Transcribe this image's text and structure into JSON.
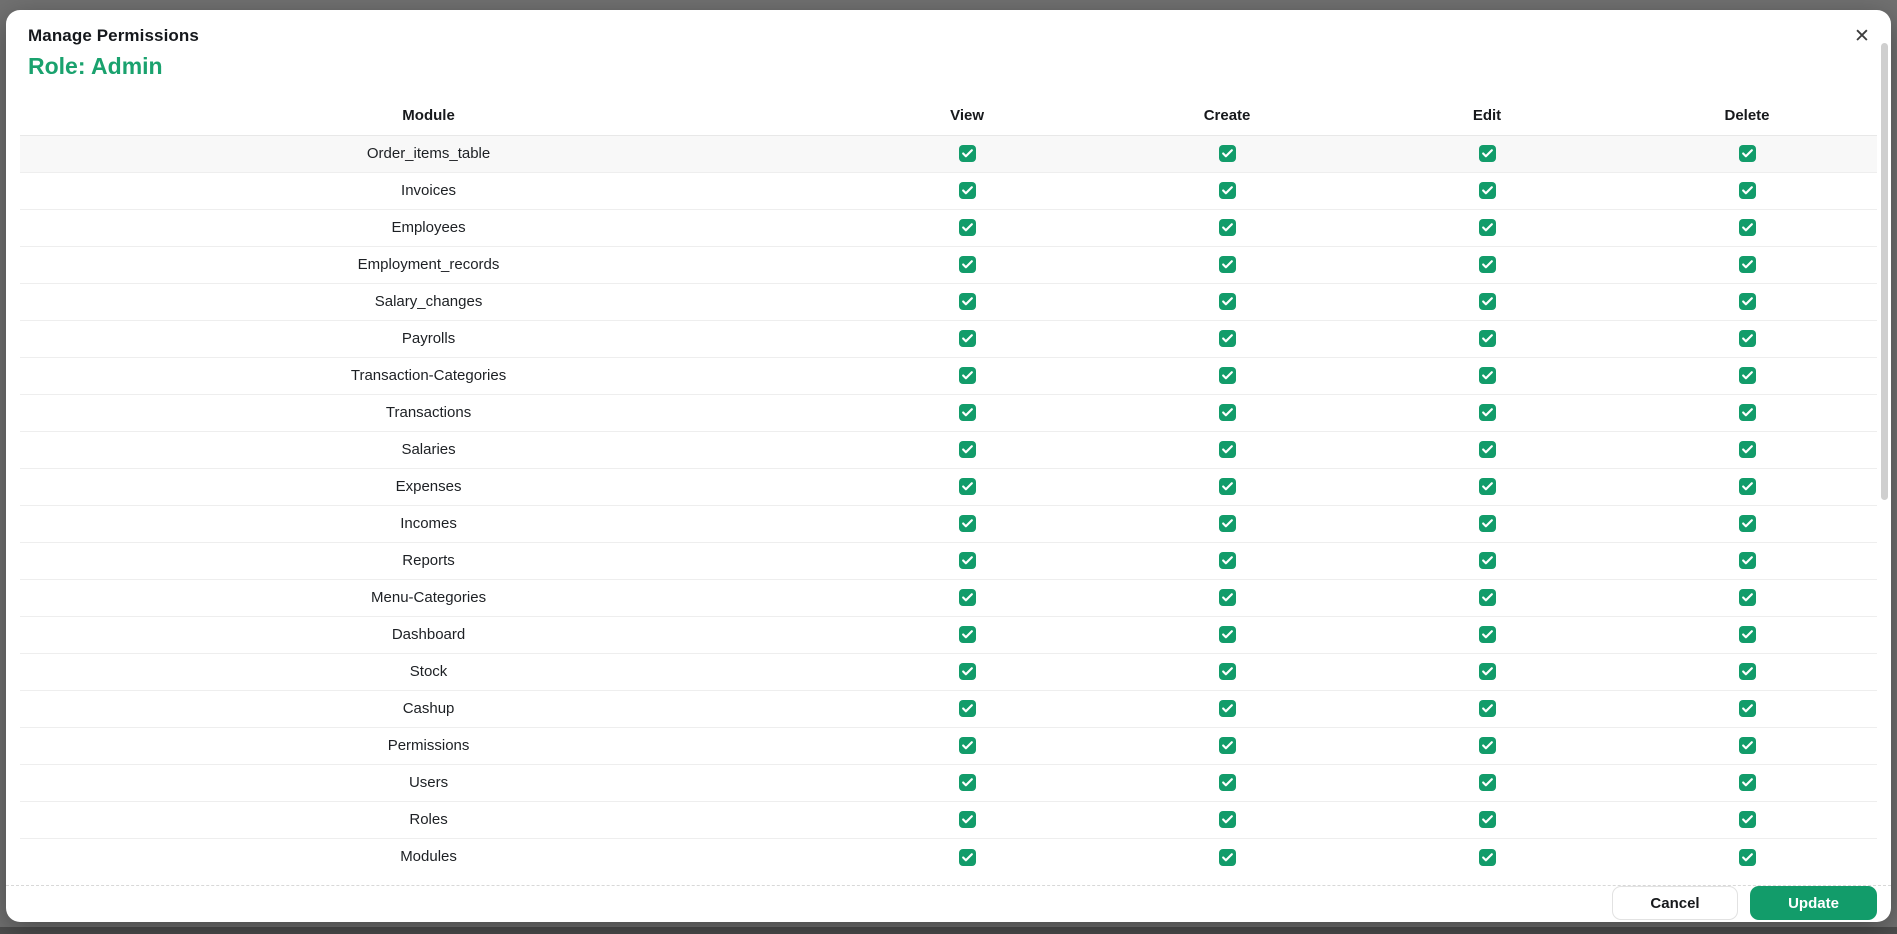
{
  "modal": {
    "title": "Manage Permissions",
    "subtitle": "Role: Admin",
    "close_icon": "✕"
  },
  "table": {
    "columns": [
      "Module",
      "View",
      "Create",
      "Edit",
      "Delete"
    ],
    "permission_keys": [
      "view",
      "create",
      "edit",
      "delete"
    ],
    "rows": [
      {
        "module": "Order_items_table",
        "view": true,
        "create": true,
        "edit": true,
        "delete": true,
        "highlighted": true
      },
      {
        "module": "Invoices",
        "view": true,
        "create": true,
        "edit": true,
        "delete": true,
        "highlighted": false
      },
      {
        "module": "Employees",
        "view": true,
        "create": true,
        "edit": true,
        "delete": true,
        "highlighted": false
      },
      {
        "module": "Employment_records",
        "view": true,
        "create": true,
        "edit": true,
        "delete": true,
        "highlighted": false
      },
      {
        "module": "Salary_changes",
        "view": true,
        "create": true,
        "edit": true,
        "delete": true,
        "highlighted": false
      },
      {
        "module": "Payrolls",
        "view": true,
        "create": true,
        "edit": true,
        "delete": true,
        "highlighted": false
      },
      {
        "module": "Transaction-Categories",
        "view": true,
        "create": true,
        "edit": true,
        "delete": true,
        "highlighted": false
      },
      {
        "module": "Transactions",
        "view": true,
        "create": true,
        "edit": true,
        "delete": true,
        "highlighted": false
      },
      {
        "module": "Salaries",
        "view": true,
        "create": true,
        "edit": true,
        "delete": true,
        "highlighted": false
      },
      {
        "module": "Expenses",
        "view": true,
        "create": true,
        "edit": true,
        "delete": true,
        "highlighted": false
      },
      {
        "module": "Incomes",
        "view": true,
        "create": true,
        "edit": true,
        "delete": true,
        "highlighted": false
      },
      {
        "module": "Reports",
        "view": true,
        "create": true,
        "edit": true,
        "delete": true,
        "highlighted": false
      },
      {
        "module": "Menu-Categories",
        "view": true,
        "create": true,
        "edit": true,
        "delete": true,
        "highlighted": false
      },
      {
        "module": "Dashboard",
        "view": true,
        "create": true,
        "edit": true,
        "delete": true,
        "highlighted": false
      },
      {
        "module": "Stock",
        "view": true,
        "create": true,
        "edit": true,
        "delete": true,
        "highlighted": false
      },
      {
        "module": "Cashup",
        "view": true,
        "create": true,
        "edit": true,
        "delete": true,
        "highlighted": false
      },
      {
        "module": "Permissions",
        "view": true,
        "create": true,
        "edit": true,
        "delete": true,
        "highlighted": false
      },
      {
        "module": "Users",
        "view": true,
        "create": true,
        "edit": true,
        "delete": true,
        "highlighted": false
      },
      {
        "module": "Roles",
        "view": true,
        "create": true,
        "edit": true,
        "delete": true,
        "highlighted": false
      },
      {
        "module": "Modules",
        "view": true,
        "create": true,
        "edit": true,
        "delete": true,
        "highlighted": false
      }
    ]
  },
  "footer": {
    "cancel_label": "Cancel",
    "update_label": "Update"
  },
  "colors": {
    "accent_green": "#129c6a",
    "subtitle_green": "#1aa26e",
    "row_highlight": "#f8f8f8"
  }
}
